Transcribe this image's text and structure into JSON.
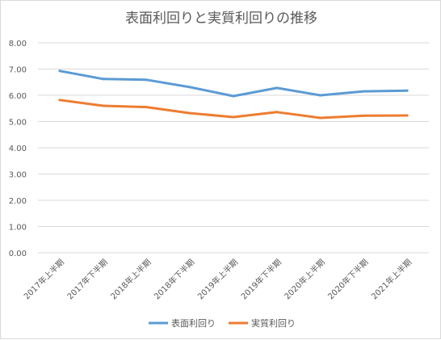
{
  "chart_data": {
    "type": "line",
    "title": "表面利回りと実質利回りの推移",
    "categories": [
      "2017年上半期",
      "2017年下半期",
      "2018年上半期",
      "2018年下半期",
      "2019年上半期",
      "2019年下半期",
      "2020年上半期",
      "2020年下半期",
      "2021年上半期"
    ],
    "series": [
      {
        "name": "表面利回り",
        "color": "#5b9bd5",
        "values": [
          6.93,
          6.62,
          6.59,
          6.31,
          5.97,
          6.28,
          6.0,
          6.15,
          6.18
        ]
      },
      {
        "name": "実質利回り",
        "color": "#ed7d31",
        "values": [
          5.82,
          5.6,
          5.55,
          5.32,
          5.17,
          5.36,
          5.14,
          5.22,
          5.23
        ]
      }
    ],
    "ylim": [
      0,
      8
    ],
    "yticks": [
      "0.00",
      "1.00",
      "2.00",
      "3.00",
      "4.00",
      "5.00",
      "6.00",
      "7.00",
      "8.00"
    ],
    "grid": true,
    "legend_position": "bottom"
  }
}
